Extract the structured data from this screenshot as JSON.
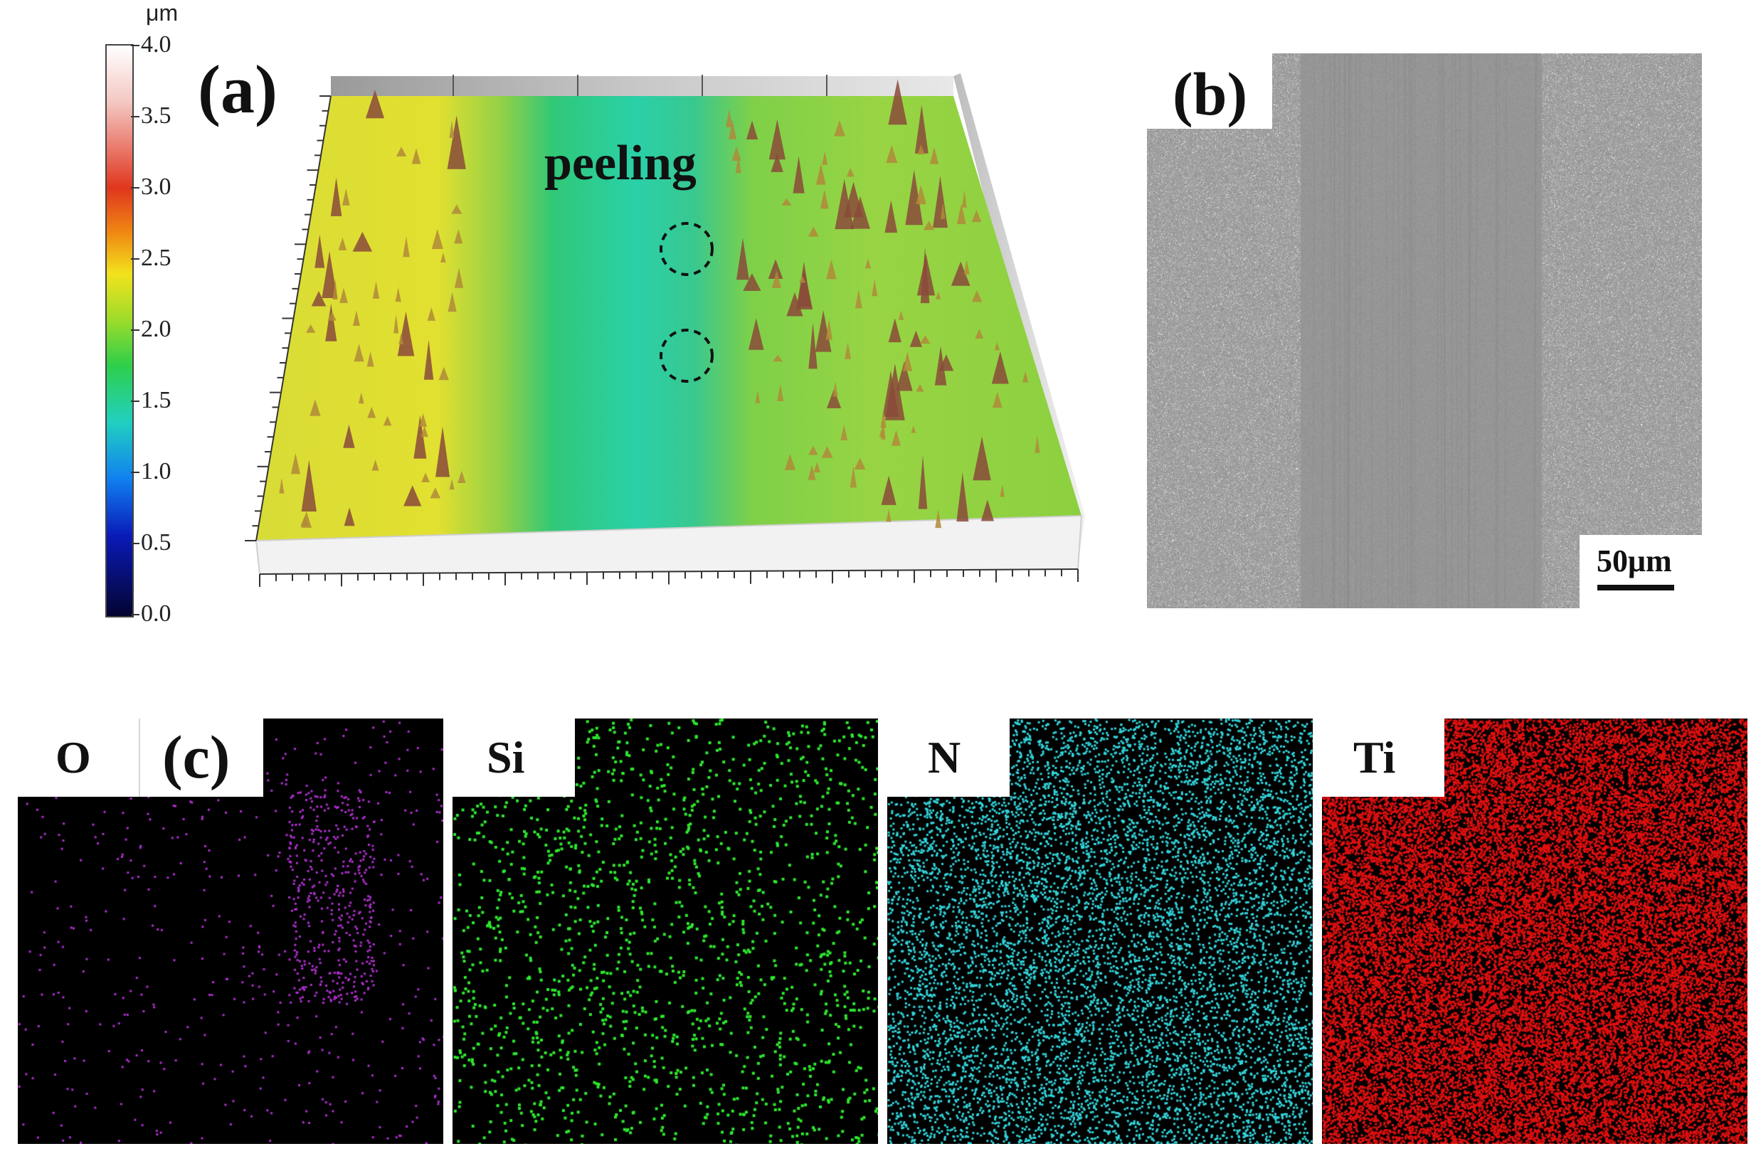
{
  "panel_a": {
    "label": "(a)",
    "annotation": "peeling",
    "colorbar": {
      "unit": "μm",
      "ticks": [
        "4.0",
        "3.5",
        "3.0",
        "2.5",
        "2.0",
        "1.5",
        "1.0",
        "0.5",
        "0.0"
      ],
      "min": 0.0,
      "max": 4.0
    }
  },
  "panel_b": {
    "label": "(b)",
    "scale_bar": "50μm"
  },
  "panel_c": {
    "label": "(c)",
    "maps": [
      {
        "element": "O",
        "color": "#b02fd0"
      },
      {
        "element": "Si",
        "color": "#2ee82e"
      },
      {
        "element": "N",
        "color": "#33d6dc"
      },
      {
        "element": "Ti",
        "color": "#e01010"
      }
    ]
  }
}
